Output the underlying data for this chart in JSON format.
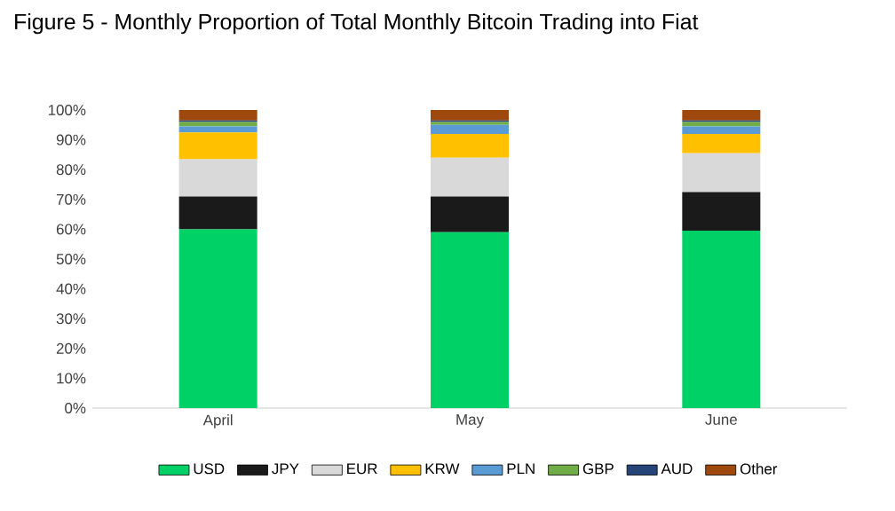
{
  "chart_data": {
    "type": "bar",
    "stacked": true,
    "title": "Figure 5 - Monthly Proportion of Total Monthly Bitcoin Trading into Fiat",
    "categories": [
      "April",
      "May",
      "June"
    ],
    "series": [
      {
        "name": "USD",
        "color": "#00d166",
        "values": [
          60,
          59,
          59.5
        ]
      },
      {
        "name": "JPY",
        "color": "#1a1a1a",
        "values": [
          11,
          12,
          13
        ]
      },
      {
        "name": "EUR",
        "color": "#d9d9d9",
        "values": [
          12.5,
          13,
          13
        ]
      },
      {
        "name": "KRW",
        "color": "#ffc000",
        "values": [
          9,
          8,
          6.5
        ]
      },
      {
        "name": "PLN",
        "color": "#5b9bd5",
        "values": [
          2,
          3,
          2.5
        ]
      },
      {
        "name": "GBP",
        "color": "#70ad47",
        "values": [
          1.5,
          1,
          1.5
        ]
      },
      {
        "name": "AUD",
        "color": "#264478",
        "values": [
          0.5,
          0.5,
          0.5
        ]
      },
      {
        "name": "Other",
        "color": "#9e480e",
        "values": [
          3.5,
          3.5,
          3.5
        ]
      }
    ],
    "ylim": [
      0,
      100
    ],
    "yticks": [
      {
        "value": 0,
        "label": "0%"
      },
      {
        "value": 10,
        "label": "10%"
      },
      {
        "value": 20,
        "label": "20%"
      },
      {
        "value": 30,
        "label": "30%"
      },
      {
        "value": 40,
        "label": "40%"
      },
      {
        "value": 50,
        "label": "50%"
      },
      {
        "value": 60,
        "label": "60%"
      },
      {
        "value": 70,
        "label": "70%"
      },
      {
        "value": 80,
        "label": "80%"
      },
      {
        "value": 90,
        "label": "90%"
      },
      {
        "value": 100,
        "label": "100%"
      }
    ],
    "legend": "bottom"
  }
}
